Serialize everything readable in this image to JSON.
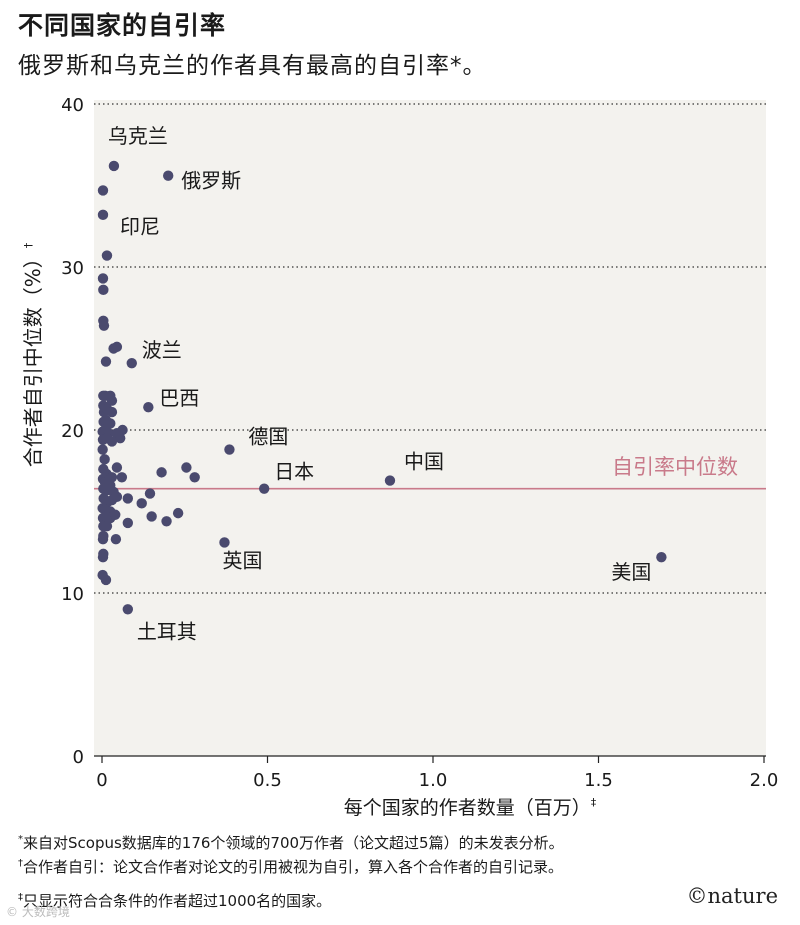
{
  "header": {
    "title": "不同国家的自引率",
    "subtitle": "俄罗斯和乌克兰的作者具有最高的自引率*。"
  },
  "colors": {
    "plot_background": "#f3f2ee",
    "point": "#4a4a6e",
    "median_line": "#c97a8a",
    "median_text": "#c97a8a",
    "grid": "#333333"
  },
  "chart_data": {
    "type": "scatter",
    "title": "不同国家的自引率",
    "xlabel": "每个国家的作者数量（百万）",
    "xlabel_mark": "‡",
    "ylabel": "合作者自引中位数（%）",
    "ylabel_mark": "†",
    "xlim": [
      0,
      2.0
    ],
    "ylim": [
      0,
      40
    ],
    "xticks": [
      0,
      0.5,
      1.0,
      1.5,
      2.0
    ],
    "xtick_labels": [
      "0",
      "0.5",
      "1.0",
      "1.5",
      "2.0"
    ],
    "yticks": [
      0,
      10,
      20,
      30,
      40
    ],
    "ytick_labels": [
      "0",
      "10",
      "20",
      "30",
      "40"
    ],
    "grid": "horizontal dotted",
    "median": {
      "value": 16.4,
      "label": "自引率中位数"
    },
    "labeled_points": [
      {
        "label": "乌克兰",
        "x": 0.036,
        "y": 36.2
      },
      {
        "label": "俄罗斯",
        "x": 0.2,
        "y": 35.6
      },
      {
        "label": "印尼",
        "x": 0.015,
        "y": 30.7
      },
      {
        "label": "波兰",
        "x": 0.09,
        "y": 24.1
      },
      {
        "label": "巴西",
        "x": 0.14,
        "y": 21.4
      },
      {
        "label": "德国",
        "x": 0.385,
        "y": 18.8
      },
      {
        "label": "日本",
        "x": 0.49,
        "y": 16.4
      },
      {
        "label": "中国",
        "x": 0.87,
        "y": 16.9
      },
      {
        "label": "英国",
        "x": 0.37,
        "y": 13.1
      },
      {
        "label": "美国",
        "x": 1.69,
        "y": 12.2
      },
      {
        "label": "土耳其",
        "x": 0.078,
        "y": 9.0
      }
    ],
    "points": [
      {
        "x": 0.003,
        "y": 34.7
      },
      {
        "x": 0.003,
        "y": 33.2
      },
      {
        "x": 0.003,
        "y": 29.3
      },
      {
        "x": 0.004,
        "y": 28.6
      },
      {
        "x": 0.004,
        "y": 26.7
      },
      {
        "x": 0.006,
        "y": 26.4
      },
      {
        "x": 0.012,
        "y": 24.2
      },
      {
        "x": 0.035,
        "y": 25.0
      },
      {
        "x": 0.045,
        "y": 25.1
      },
      {
        "x": 0.004,
        "y": 22.1
      },
      {
        "x": 0.01,
        "y": 22.1
      },
      {
        "x": 0.025,
        "y": 22.1
      },
      {
        "x": 0.004,
        "y": 21.5
      },
      {
        "x": 0.03,
        "y": 21.8
      },
      {
        "x": 0.006,
        "y": 21.1
      },
      {
        "x": 0.015,
        "y": 21.3
      },
      {
        "x": 0.03,
        "y": 21.1
      },
      {
        "x": 0.005,
        "y": 20.5
      },
      {
        "x": 0.012,
        "y": 20.6
      },
      {
        "x": 0.025,
        "y": 20.4
      },
      {
        "x": 0.002,
        "y": 19.9
      },
      {
        "x": 0.01,
        "y": 20.0
      },
      {
        "x": 0.02,
        "y": 19.8
      },
      {
        "x": 0.045,
        "y": 19.8
      },
      {
        "x": 0.062,
        "y": 20.0
      },
      {
        "x": 0.003,
        "y": 19.4
      },
      {
        "x": 0.015,
        "y": 19.5
      },
      {
        "x": 0.03,
        "y": 19.3
      },
      {
        "x": 0.055,
        "y": 19.5
      },
      {
        "x": 0.002,
        "y": 18.8
      },
      {
        "x": 0.008,
        "y": 18.2
      },
      {
        "x": 0.004,
        "y": 17.6
      },
      {
        "x": 0.014,
        "y": 17.3
      },
      {
        "x": 0.03,
        "y": 17.1
      },
      {
        "x": 0.045,
        "y": 17.7
      },
      {
        "x": 0.003,
        "y": 17.0
      },
      {
        "x": 0.009,
        "y": 16.8
      },
      {
        "x": 0.02,
        "y": 16.9
      },
      {
        "x": 0.06,
        "y": 17.1
      },
      {
        "x": 0.004,
        "y": 16.4
      },
      {
        "x": 0.015,
        "y": 16.3
      },
      {
        "x": 0.025,
        "y": 16.6
      },
      {
        "x": 0.035,
        "y": 16.2
      },
      {
        "x": 0.005,
        "y": 15.8
      },
      {
        "x": 0.018,
        "y": 15.6
      },
      {
        "x": 0.03,
        "y": 15.7
      },
      {
        "x": 0.045,
        "y": 15.9
      },
      {
        "x": 0.078,
        "y": 15.8
      },
      {
        "x": 0.002,
        "y": 15.2
      },
      {
        "x": 0.01,
        "y": 15.1
      },
      {
        "x": 0.025,
        "y": 15.0
      },
      {
        "x": 0.003,
        "y": 14.6
      },
      {
        "x": 0.012,
        "y": 14.7
      },
      {
        "x": 0.025,
        "y": 14.6
      },
      {
        "x": 0.04,
        "y": 14.8
      },
      {
        "x": 0.004,
        "y": 14.1
      },
      {
        "x": 0.015,
        "y": 14.1
      },
      {
        "x": 0.004,
        "y": 13.5
      },
      {
        "x": 0.003,
        "y": 13.3
      },
      {
        "x": 0.042,
        "y": 13.3
      },
      {
        "x": 0.004,
        "y": 12.4
      },
      {
        "x": 0.003,
        "y": 12.2
      },
      {
        "x": 0.002,
        "y": 11.1
      },
      {
        "x": 0.012,
        "y": 10.8
      },
      {
        "x": 0.078,
        "y": 14.3
      },
      {
        "x": 0.12,
        "y": 15.5
      },
      {
        "x": 0.145,
        "y": 16.1
      },
      {
        "x": 0.18,
        "y": 17.4
      },
      {
        "x": 0.15,
        "y": 14.7
      },
      {
        "x": 0.195,
        "y": 14.4
      },
      {
        "x": 0.23,
        "y": 14.9
      },
      {
        "x": 0.255,
        "y": 17.7
      },
      {
        "x": 0.28,
        "y": 17.1
      }
    ]
  },
  "footnotes": {
    "n1_mark": "*",
    "n1_text": "来自对Scopus数据库的176个领域的700万作者（论文超过5篇）的未发表分析。",
    "n2_mark": "†",
    "n2_text": "合作者自引：论文合作者对论文的引用被视为自引，算入各个合作者的自引记录。",
    "n3_mark": "‡",
    "n3_text": "只显示符合合条件的作者超过1000名的国家。"
  },
  "branding": {
    "logo": "©nature",
    "watermark": "© 大数跨境"
  }
}
